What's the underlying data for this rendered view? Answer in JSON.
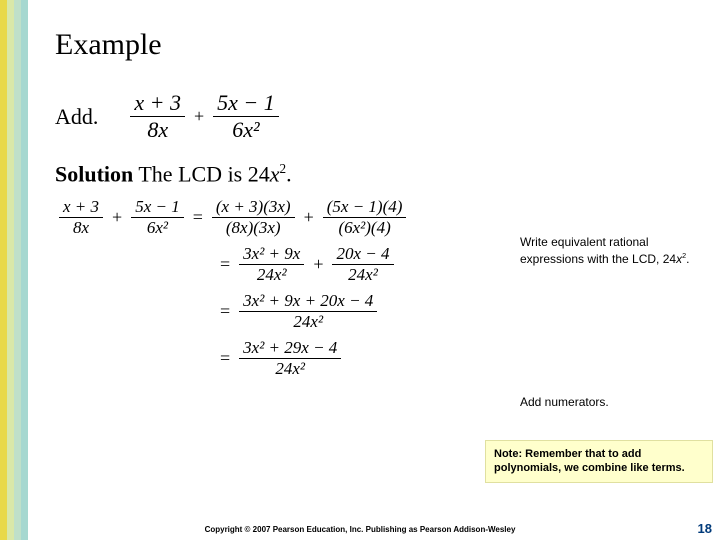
{
  "stripe_colors": [
    "#e8d94a",
    "#d9e8a8",
    "#bfe0c9",
    "#a6d8d0"
  ],
  "title": "Example",
  "add_label": "Add.",
  "solution_prefix": "Solution",
  "solution_rest": " The LCD is 24",
  "solution_var": "x",
  "solution_exp": "2",
  "solution_period": ".",
  "problem": {
    "f1": {
      "num": "x + 3",
      "den": "8x"
    },
    "f2": {
      "num": "5x − 1",
      "den": "6x²"
    }
  },
  "step1": {
    "left": {
      "f1": {
        "num": "x + 3",
        "den": "8x"
      },
      "f2": {
        "num": "5x − 1",
        "den": "6x²"
      }
    },
    "right": {
      "f1": {
        "num": "(x + 3)(3x)",
        "den": "(8x)(3x)"
      },
      "f2": {
        "num": "(5x − 1)(4)",
        "den": "(6x²)(4)"
      }
    }
  },
  "step2": {
    "f1": {
      "num": "3x² + 9x",
      "den": "24x²"
    },
    "f2": {
      "num": "20x − 4",
      "den": "24x²"
    }
  },
  "step3": {
    "num": "3x² + 9x + 20x − 4",
    "den": "24x²"
  },
  "step4": {
    "num": "3x² + 29x − 4",
    "den": "24x²"
  },
  "annot1_a": "Write equivalent rational expressions with the LCD, 24",
  "annot1_b": "x",
  "annot1_c": "2",
  "annot1_d": ".",
  "annot2": "Add numerators.",
  "note_label": "Note:",
  "note_rest": "  Remember that to add polynomials, we combine like terms.",
  "copyright": "Copyright © 2007 Pearson Education, Inc.  Publishing as Pearson Addison-Wesley",
  "slidenum": "18"
}
